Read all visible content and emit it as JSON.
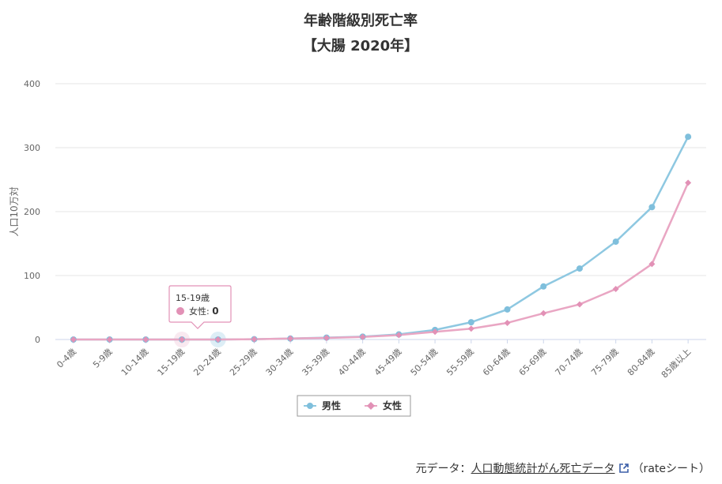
{
  "colors": {
    "male": "#8ec8e1",
    "female": "#e9a6c3",
    "male_marker": "#7fbfdc",
    "female_marker": "#e291b6",
    "grid": "#e6e6e6",
    "link_icon": "#3b5ea8"
  },
  "chart_data": {
    "type": "line",
    "title": "年齢階級別死亡率",
    "subtitle": "【大腸 2020年】",
    "ylabel": "人口10万対",
    "xlabel": "",
    "ylim": [
      0,
      400
    ],
    "yticks": [
      0,
      100,
      200,
      300,
      400
    ],
    "grid": true,
    "legend": "bottom",
    "categories": [
      "0-4歳",
      "5-9歳",
      "10-14歳",
      "15-19歳",
      "20-24歳",
      "25-29歳",
      "30-34歳",
      "35-39歳",
      "40-44歳",
      "45-49歳",
      "50-54歳",
      "55-59歳",
      "60-64歳",
      "65-69歳",
      "70-74歳",
      "75-79歳",
      "80-84歳",
      "85歳以上"
    ],
    "series": [
      {
        "name": "男性",
        "marker": "circle",
        "values": [
          0,
          0,
          0,
          0,
          0,
          0.5,
          1.5,
          3,
          4.5,
          8,
          15,
          27,
          47,
          83,
          111,
          153,
          207,
          317
        ]
      },
      {
        "name": "女性",
        "marker": "diamond",
        "values": [
          0,
          0,
          0,
          0,
          0,
          0.5,
          1.5,
          2.5,
          4,
          7,
          12,
          17,
          26,
          41,
          55,
          79,
          118,
          245
        ]
      }
    ],
    "tooltip": {
      "category": "15-19歳",
      "series": "女性",
      "value": "0"
    }
  },
  "source": {
    "prefix": "元データ：",
    "link_text": "人口動態統計がん死亡データ",
    "suffix": "（rateシート）"
  }
}
